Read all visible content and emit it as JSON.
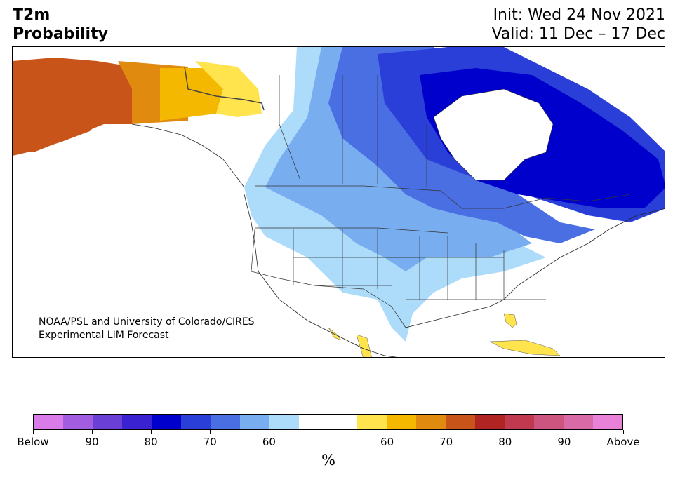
{
  "header": {
    "title_line1": "T2m",
    "title_line2": "Probability",
    "init": "Init: Wed 24 Nov 2021",
    "valid": "Valid: 11 Dec – 17 Dec"
  },
  "credit": {
    "line1": "NOAA/PSL and University of Colorado/CIRES",
    "line2": "Experimental LIM Forecast"
  },
  "colorbar": {
    "unit": "%",
    "colors": [
      "#d97be8",
      "#a15ce0",
      "#6a3fd6",
      "#3a22d0",
      "#0000cc",
      "#2a3fd8",
      "#4a6fe3",
      "#78aef0",
      "#addcfb",
      "#ffffff",
      "#ffffff",
      "#ffe44d",
      "#f5b800",
      "#e08a10",
      "#c8541a",
      "#b02424",
      "#c0394f",
      "#cc5580",
      "#d86aa8",
      "#e882d8"
    ],
    "tick_labels": [
      "Below",
      "90",
      "80",
      "70",
      "60",
      "",
      "60",
      "70",
      "80",
      "90",
      "Above"
    ]
  },
  "map": {
    "region": "North America",
    "legend_colors": {
      "above_70": "#c8541a",
      "above_60": "#e08a10",
      "above_55": "#f5b800",
      "above_50": "#ffe44d",
      "below_55": "#addcfb",
      "below_60": "#78aef0",
      "below_65": "#4a6fe3",
      "below_70": "#2a3fd8",
      "below_80": "#0000cc"
    }
  }
}
